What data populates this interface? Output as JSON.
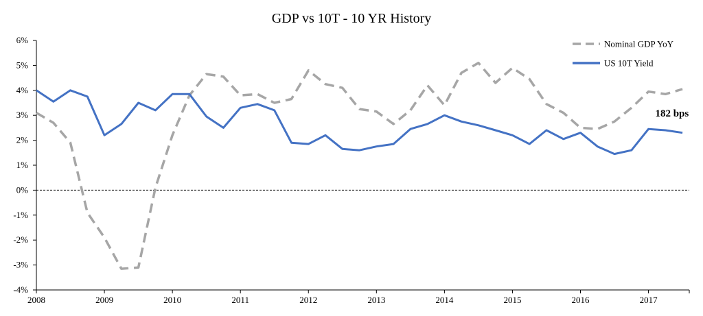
{
  "chart_data": {
    "type": "line",
    "title": "GDP vs 10T - 10 YR History",
    "xlabel": "",
    "ylabel": "",
    "xlim": [
      2008.0,
      2017.6
    ],
    "ylim": [
      -4,
      6
    ],
    "x_ticks": [
      "2008",
      "2009",
      "2010",
      "2011",
      "2012",
      "2013",
      "2014",
      "2015",
      "2016",
      "2017"
    ],
    "y_ticks": [
      "6%",
      "5%",
      "4%",
      "3%",
      "2%",
      "1%",
      "0%",
      "-1%",
      "-2%",
      "-3%",
      "-4%"
    ],
    "y_tick_values": [
      6,
      5,
      4,
      3,
      2,
      1,
      0,
      -1,
      -2,
      -3,
      -4
    ],
    "reference_line": {
      "y": 0,
      "style": "dashed",
      "color": "#000000"
    },
    "legend_position": "top-right",
    "grid": false,
    "series": [
      {
        "name": "Nominal GDP YoY",
        "style": "dashed",
        "color": "#a6a6a6",
        "x": [
          2008.0,
          2008.25,
          2008.5,
          2008.75,
          2009.0,
          2009.25,
          2009.5,
          2009.75,
          2010.0,
          2010.25,
          2010.5,
          2010.75,
          2011.0,
          2011.25,
          2011.5,
          2011.75,
          2012.0,
          2012.25,
          2012.5,
          2012.75,
          2013.0,
          2013.25,
          2013.5,
          2013.75,
          2014.0,
          2014.25,
          2014.5,
          2014.75,
          2015.0,
          2015.25,
          2015.5,
          2015.75,
          2016.0,
          2016.25,
          2016.5,
          2016.75,
          2017.0,
          2017.25,
          2017.5
        ],
        "values": [
          3.1,
          2.7,
          1.9,
          -0.9,
          -1.9,
          -3.15,
          -3.1,
          0.1,
          2.2,
          3.8,
          4.65,
          4.55,
          3.8,
          3.85,
          3.5,
          3.65,
          4.8,
          4.25,
          4.1,
          3.25,
          3.15,
          2.65,
          3.2,
          4.2,
          3.4,
          4.7,
          5.1,
          4.3,
          4.9,
          4.45,
          3.45,
          3.1,
          2.5,
          2.45,
          2.75,
          3.3,
          3.95,
          3.85,
          4.05
        ]
      },
      {
        "name": "US 10T Yield",
        "style": "solid",
        "color": "#4472c4",
        "x": [
          2008.0,
          2008.25,
          2008.5,
          2008.75,
          2009.0,
          2009.25,
          2009.5,
          2009.75,
          2010.0,
          2010.25,
          2010.5,
          2010.75,
          2011.0,
          2011.25,
          2011.5,
          2011.75,
          2012.0,
          2012.25,
          2012.5,
          2012.75,
          2013.0,
          2013.25,
          2013.5,
          2013.75,
          2014.0,
          2014.25,
          2014.5,
          2014.75,
          2015.0,
          2015.25,
          2015.5,
          2015.75,
          2016.0,
          2016.25,
          2016.5,
          2016.75,
          2017.0,
          2017.25,
          2017.5
        ],
        "values": [
          4.0,
          3.55,
          4.0,
          3.75,
          2.2,
          2.65,
          3.5,
          3.2,
          3.85,
          3.85,
          2.95,
          2.5,
          3.3,
          3.45,
          3.2,
          1.9,
          1.85,
          2.2,
          1.65,
          1.6,
          1.75,
          1.85,
          2.45,
          2.65,
          3.0,
          2.75,
          2.6,
          2.4,
          2.2,
          1.85,
          2.4,
          2.05,
          2.3,
          1.75,
          1.45,
          1.6,
          2.45,
          2.4,
          2.3
        ]
      }
    ],
    "annotations": [
      {
        "text": "182 bps",
        "x": 2017.1,
        "y": 2.95
      }
    ]
  }
}
